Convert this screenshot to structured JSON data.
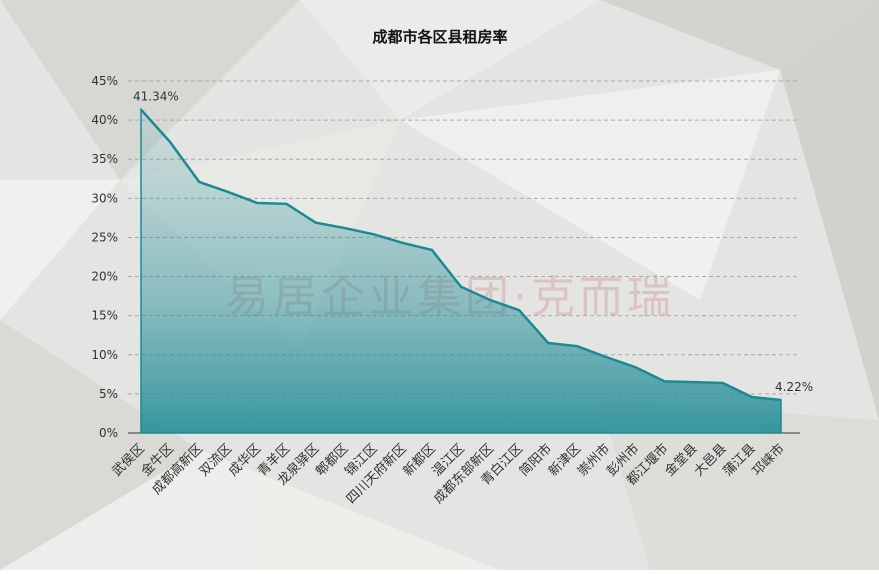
{
  "chart_data": {
    "type": "area",
    "title": "成都市各区县租房率",
    "watermark": "易居企业集团·克而瑞",
    "categories": [
      "武侯区",
      "金牛区",
      "成都高新区",
      "双流区",
      "成华区",
      "青羊区",
      "龙泉驿区",
      "郫都区",
      "锦江区",
      "四川天府新区",
      "新都区",
      "温江区",
      "成都东部新区",
      "青白江区",
      "简阳市",
      "新津区",
      "崇州市",
      "彭州市",
      "都江堰市",
      "金堂县",
      "大邑县",
      "蒲江县",
      "邛崃市"
    ],
    "values": [
      41.34,
      37.2,
      32.1,
      30.8,
      29.4,
      29.3,
      26.9,
      26.2,
      25.4,
      24.3,
      23.4,
      18.7,
      17.0,
      15.7,
      11.5,
      11.1,
      9.7,
      8.4,
      6.6,
      6.5,
      6.4,
      4.6,
      4.22
    ],
    "value_labels": [
      "41.34%",
      null,
      null,
      null,
      null,
      null,
      null,
      null,
      null,
      null,
      null,
      null,
      null,
      null,
      null,
      null,
      null,
      null,
      null,
      null,
      null,
      null,
      "4.22%"
    ],
    "color": "#1a8a93",
    "ylim": [
      0,
      45
    ],
    "yticks": [
      {
        "value": 0,
        "label": "0%"
      },
      {
        "value": 5,
        "label": "5%"
      },
      {
        "value": 10,
        "label": "10%"
      },
      {
        "value": 15,
        "label": "15%"
      },
      {
        "value": 20,
        "label": "20%"
      },
      {
        "value": 25,
        "label": "25%"
      },
      {
        "value": 30,
        "label": "30%"
      },
      {
        "value": 35,
        "label": "35%"
      },
      {
        "value": 40,
        "label": "40%"
      },
      {
        "value": 45,
        "label": "45%"
      }
    ],
    "grid": true
  }
}
